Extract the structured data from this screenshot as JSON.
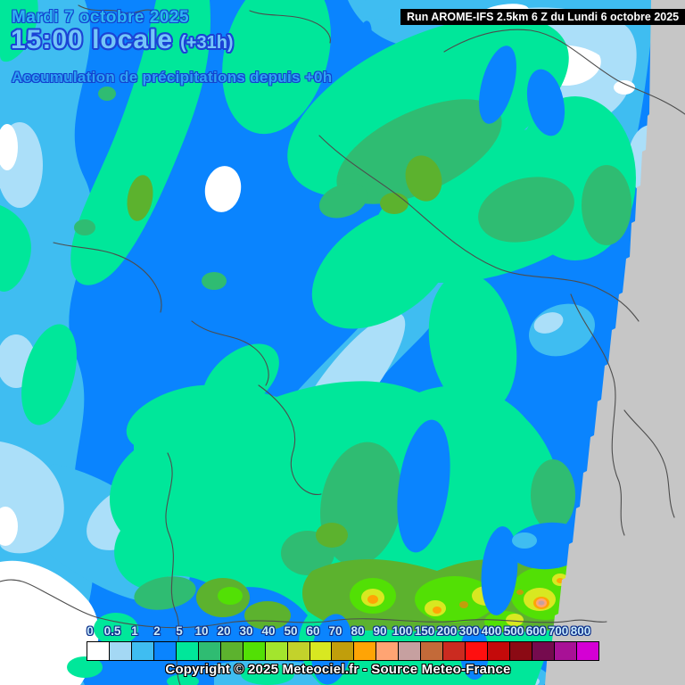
{
  "title_block": {
    "date": "Mardi 7 octobre 2025",
    "time": "15:00 locale",
    "run_offset": "(+31h)",
    "subtitle": "Accumulation de précipitations depuis +0h"
  },
  "run_banner": {
    "text": "Run AROME-IFS 2.5km 6 Z du Lundi 6 octobre 2025"
  },
  "footer": {
    "copyright": "Copyright © 2025 Meteociel.fr - Source Meteo-France"
  },
  "legend": {
    "labels": [
      "0",
      "0.5",
      "1",
      "2",
      "5",
      "10",
      "20",
      "30",
      "40",
      "50",
      "60",
      "70",
      "80",
      "90",
      "100",
      "150",
      "200",
      "300",
      "400",
      "500",
      "600",
      "700",
      "800"
    ],
    "colors": [
      "#ffffff",
      "#a4d8f4",
      "#3fbdf1",
      "#0a84fe",
      "#00e79a",
      "#2fbc72",
      "#5cb22e",
      "#52e005",
      "#a3e52d",
      "#c3d22b",
      "#d8e821",
      "#c19e0b",
      "#ffa405",
      "#ffa473",
      "#c6a0a0",
      "#c36a39",
      "#cb2b20",
      "#ff0f0f",
      "#c40a0a",
      "#8b0a14",
      "#750b4e",
      "#a81196",
      "#d400d4"
    ]
  },
  "map": {
    "description": "Carte AROME-IFS accumulation de précipitations (France)",
    "base_color": "#0a84fe",
    "no_data_color": "#c6c6c6",
    "border_color": "#4d4d4d"
  }
}
